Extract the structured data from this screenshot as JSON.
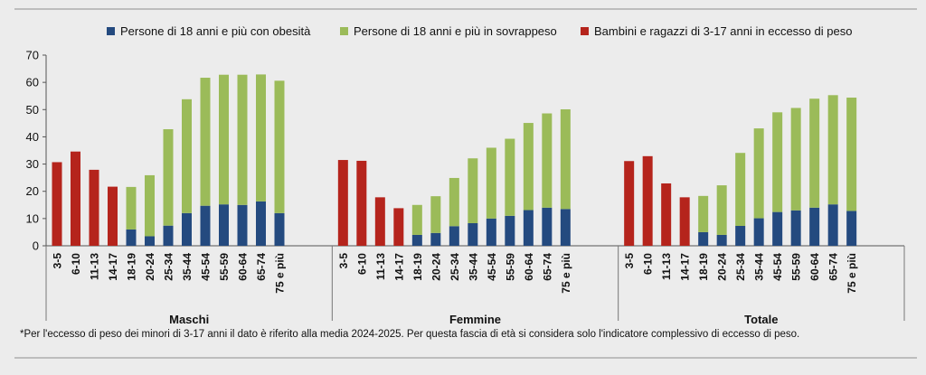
{
  "chart_data": {
    "type": "bar",
    "stacked": true,
    "legend_position": "top",
    "ylim": [
      0,
      70
    ],
    "yticks": [
      0,
      10,
      20,
      30,
      40,
      50,
      60,
      70
    ],
    "grid": false,
    "colors": {
      "obesity": "#244a7f",
      "overweight": "#9bbb59",
      "children": "#b5241c"
    },
    "legend": [
      {
        "key": "obesity",
        "label": "Persone di 18 anni e più con obesità"
      },
      {
        "key": "overweight",
        "label": "Persone di 18 anni e più in sovrappeso"
      },
      {
        "key": "children",
        "label": "Bambini e ragazzi di 3-17 anni in eccesso di peso"
      }
    ],
    "categories": [
      "3-5",
      "6-10",
      "11-13",
      "14-17",
      "18-19",
      "20-24",
      "25-34",
      "35-44",
      "45-54",
      "55-59",
      "60-64",
      "65-74",
      "75 e più"
    ],
    "groups": [
      {
        "label": "Maschi",
        "children": [
          30.7,
          34.6,
          27.9,
          21.7
        ],
        "obesity": [
          6.0,
          3.5,
          7.4,
          12.0,
          14.7,
          15.2,
          15.0,
          16.3,
          12.0
        ],
        "overweight": [
          15.6,
          22.4,
          35.4,
          41.8,
          47.0,
          47.6,
          47.8,
          46.6,
          48.6
        ]
      },
      {
        "label": "Femmine",
        "children": [
          31.5,
          31.2,
          17.8,
          13.8
        ],
        "obesity": [
          4.0,
          4.7,
          7.2,
          8.3,
          10.0,
          11.0,
          13.1,
          14.0,
          13.5
        ],
        "overweight": [
          11.0,
          13.5,
          17.7,
          23.8,
          26.0,
          28.3,
          32.0,
          34.6,
          36.6
        ]
      },
      {
        "label": "Totale",
        "children": [
          31.1,
          32.9,
          22.9,
          17.8
        ],
        "obesity": [
          5.0,
          4.0,
          7.3,
          10.1,
          12.4,
          13.0,
          14.0,
          15.2,
          12.8
        ],
        "overweight": [
          13.3,
          18.2,
          26.8,
          33.0,
          36.6,
          37.6,
          40.0,
          40.1,
          41.6
        ]
      }
    ]
  },
  "footnote": "*Per l'eccesso di peso dei minori di 3-17 anni il dato è riferito alla media 2024-2025. Per questa fascia di età si considera solo l'indicatore complessivo di eccesso di peso."
}
